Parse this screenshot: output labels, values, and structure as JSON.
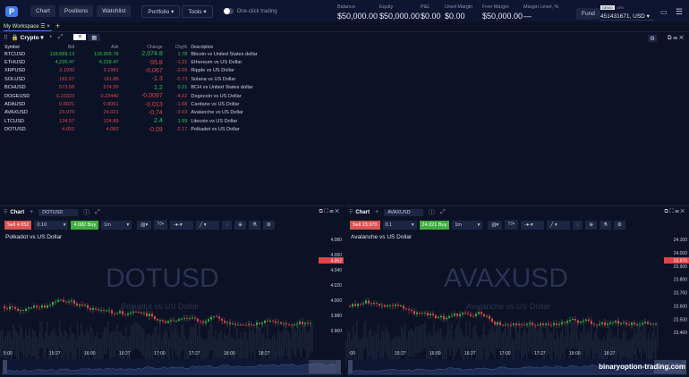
{
  "topbar": {
    "nav": [
      "Chart",
      "Positions",
      "Watchlist"
    ],
    "portfolio": "Portfolio",
    "tools": "Tools",
    "one_click": "One-click trading",
    "fund": "Fund",
    "demo_badge": "DEMO",
    "cfd": "CFD",
    "account": "451431671, USD ▾"
  },
  "stats": [
    {
      "label": "Balance",
      "value": "$50,000.00"
    },
    {
      "label": "Equity",
      "value": "$50,000.00"
    },
    {
      "label": "P&L",
      "value": "$0.00"
    },
    {
      "label": "Used Margin",
      "value": "$0.00"
    },
    {
      "label": "Free Margin",
      "value": "$50,000.00"
    },
    {
      "label": "Margin Level, %",
      "value": "—"
    }
  ],
  "workspace_tab": "My Workspace",
  "watchlist": {
    "name": "Crypto",
    "columns": [
      "Symbol",
      "Bid",
      "Ask",
      "Change",
      "Chg%",
      "Description"
    ],
    "rows": [
      [
        "BTCUSD",
        "118,889.13",
        "118,905.78",
        "2,074.8",
        "1.78",
        "Bitcoin vs United States dollar",
        "g"
      ],
      [
        "ETHUSD",
        "4,226.47",
        "4,228.47",
        "-55.8",
        "-1.31",
        "Ethereum vs US Dollar",
        "g"
      ],
      [
        "XRPUSD",
        "3.1930",
        "3.1981",
        "-0.067",
        "-2.06",
        "Ripple vs US Dollar",
        "r"
      ],
      [
        "SOLUSD",
        "181.57",
        "181.88",
        "-1.3",
        "-0.73",
        "Solana vs US Dollar",
        "r"
      ],
      [
        "BCHUSD",
        "573.58",
        "574.50",
        "1.2",
        "0.21",
        "BCH vs United States dollar",
        "r"
      ],
      [
        "DOGEUSD",
        "0.23323",
        "0.23440",
        "-0.0097",
        "-4.02",
        "Dogecoin vs US Dollar",
        "r"
      ],
      [
        "ADAUSD",
        "0.8021",
        "0.8061",
        "-0.013",
        "-1.68",
        "Cardano vs US Dollar",
        "r"
      ],
      [
        "AVAXUSD",
        "23.970",
        "24.021",
        "-0.74",
        "-3.03",
        "Avalanche vs US Dollar",
        "r"
      ],
      [
        "LTCUSD",
        "124.57",
        "124.89",
        "2.4",
        "1.99",
        "Litecoin vs US Dollar",
        "r"
      ],
      [
        "DOTUSD",
        "4.052",
        "4.082",
        "-0.09",
        "-2.17",
        "Polkadot vs US Dollar",
        "r"
      ]
    ]
  },
  "charts": [
    {
      "label": "Chart",
      "symbol": "DOTUSD",
      "sell": "Sell 4.052",
      "qty": "0.10",
      "buy": "4.082 Buy",
      "interval": "1m",
      "title": "Polkadot vs US Dollar",
      "watermark": "DOTUSD",
      "watermark_sub": "Polkadot vs US Dollar",
      "yticks": [
        "4.080",
        "4.060",
        "4.040",
        "4.020",
        "4.000",
        "3.980",
        "3.960"
      ],
      "price": "4.052",
      "xticks": [
        "5:00",
        "15:27",
        "16:00",
        "16:27",
        "17:00",
        "17:27",
        "18:00",
        "18:27"
      ]
    },
    {
      "label": "Chart",
      "symbol": "AVAXUSD",
      "sell": "Sell 23.970",
      "qty": "0.1",
      "buy": "24.021 Buy",
      "interval": "1m",
      "title": "Avalanche vs US Dollar",
      "watermark": "AVAXUSD",
      "watermark_sub": "Avalanche vs US Dollar",
      "yticks": [
        "24.100",
        "24.000",
        "23.900",
        "23.800",
        "23.700",
        "23.600",
        "23.500",
        "23.400"
      ],
      "price": "23.970",
      "xticks": [
        ":00",
        "15:27",
        "16:00",
        "16:27",
        "17:00",
        "17:27",
        "18:00",
        "18:27"
      ]
    }
  ],
  "site_watermark": "binaryoption-trading.com"
}
